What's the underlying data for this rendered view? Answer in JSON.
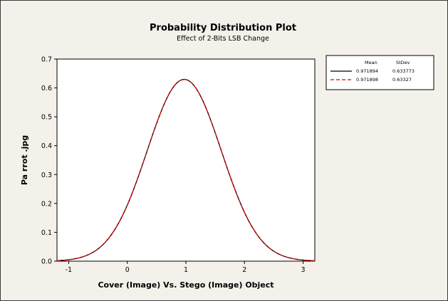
{
  "chart_data": {
    "type": "line",
    "title": "Probability Distribution Plot",
    "subtitle": "Effect of 2-Bits LSB Change",
    "xlabel": "Cover (Image) Vs. Stego (Image) Object",
    "ylabel": "Pa rrot .jpg",
    "xlim": [
      -1.2,
      3.2
    ],
    "ylim": [
      0,
      0.7
    ],
    "xticks": [
      "-1",
      "0",
      "1",
      "2",
      "3"
    ],
    "yticks": [
      "0.0",
      "0.1",
      "0.2",
      "0.3",
      "0.4",
      "0.5",
      "0.6",
      "0.7"
    ],
    "grid": false,
    "legend_position": "top-right",
    "legend_headers": {
      "mean": "Mean",
      "stdev": "StDev"
    },
    "series": [
      {
        "name": "0.971894 0.633773",
        "mean": 0.971894,
        "stdev": 0.633773,
        "mean_label": "0.971894",
        "stdev_label": "0.633773",
        "color": "#000000",
        "style": "solid"
      },
      {
        "name": "0.971898 0.63327",
        "mean": 0.971898,
        "stdev": 0.63327,
        "mean_label": "0.971898",
        "stdev_label": "0.63327",
        "color": "#e00000",
        "style": "dashed"
      }
    ]
  },
  "colors": {
    "background": "#f3f1ea",
    "plot_area": "#ffffff"
  }
}
